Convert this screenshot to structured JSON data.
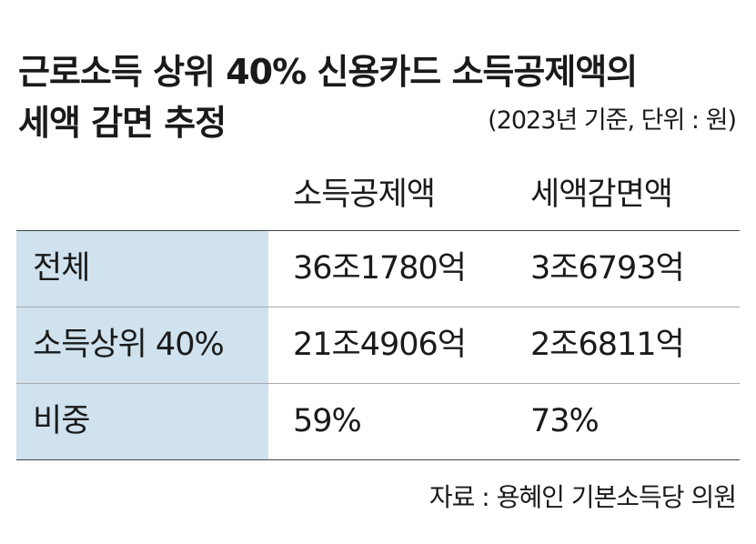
{
  "header": {
    "title": [
      "근로소득 상위 40% 신용카드 소득공제액의",
      "세액 감면 추정"
    ],
    "subtitle": "(2023년 기준, 단위 : 원)"
  },
  "table": {
    "columns": [
      "소득공제액",
      "세액감면액"
    ],
    "rows": [
      [
        "전체",
        "36조1780억",
        "3조6793억"
      ],
      [
        "소득상위 40%",
        "21조4906억",
        "2조6811억"
      ],
      [
        "비중",
        "59%",
        "73%"
      ]
    ]
  },
  "source": "자료 : 용혜인 기본소득당 의원"
}
